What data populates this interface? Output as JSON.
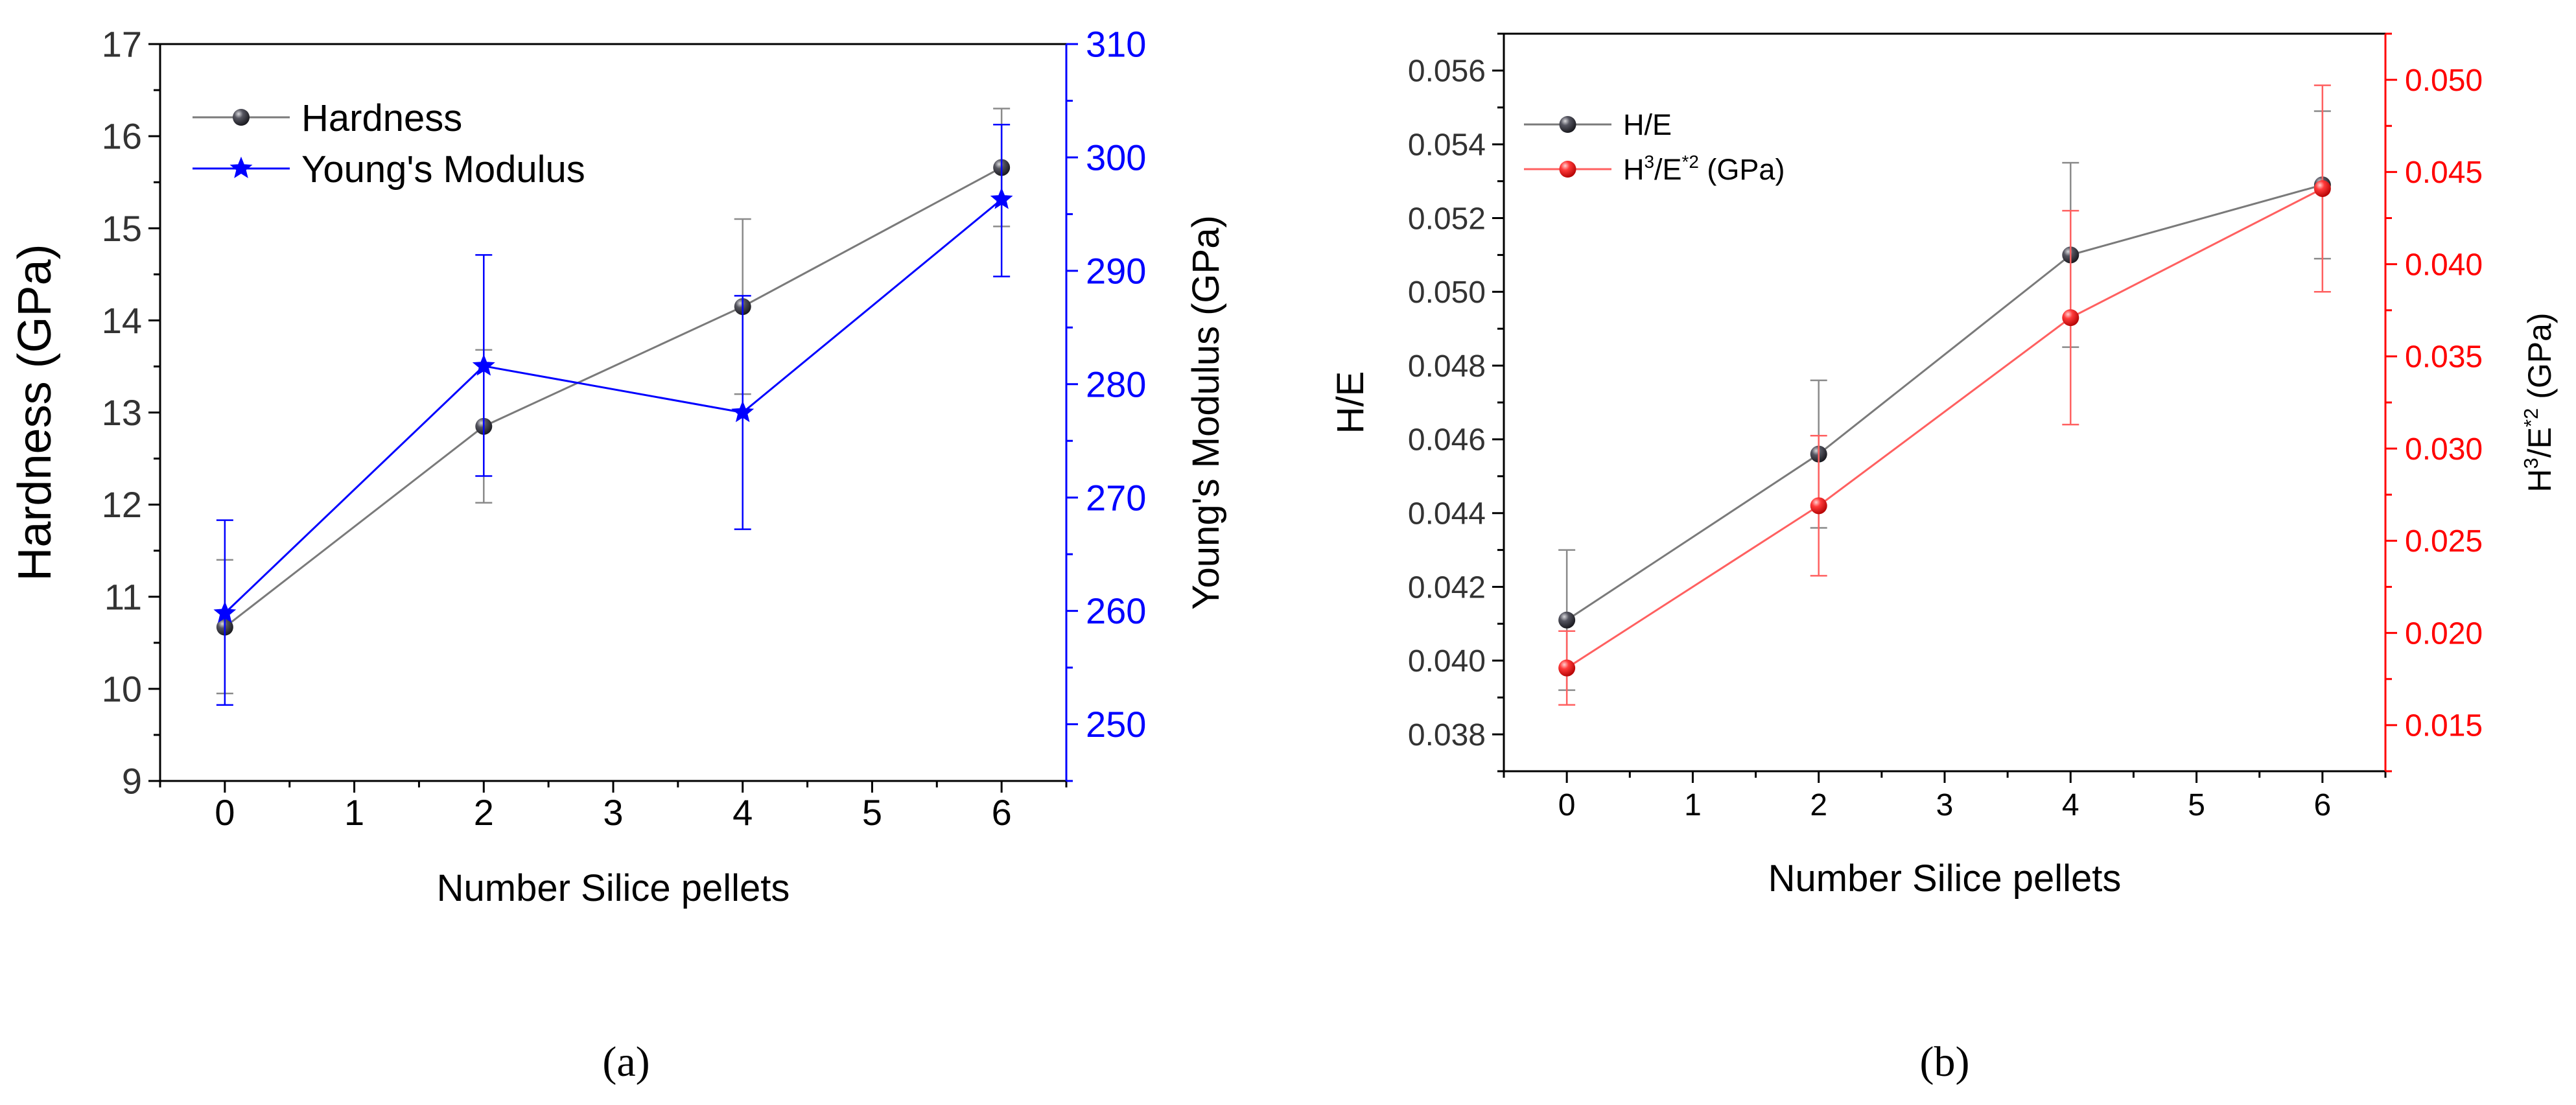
{
  "chart_data": [
    {
      "type": "line",
      "panel_label": "a",
      "xlabel": "Number  Silice pellets",
      "xlim": [
        -0.5,
        6.5
      ],
      "xticks": [
        0,
        1,
        2,
        3,
        4,
        5,
        6
      ],
      "left_axis": {
        "label": "Hardness (GPa)",
        "ylim": [
          9,
          17
        ],
        "ticks": [
          9,
          10,
          11,
          12,
          13,
          14,
          15,
          16,
          17
        ],
        "color": "#000000"
      },
      "right_axis": {
        "label": "Young's Modulus (GPa)",
        "ylim": [
          245,
          310
        ],
        "ticks": [
          250,
          260,
          270,
          280,
          290,
          300,
          310
        ],
        "color": "#0000ff"
      },
      "legend_position": "top-left",
      "series": [
        {
          "name": "Hardness",
          "axis": "left",
          "marker": "sphere",
          "line_color": "#7a7a7a",
          "marker_color": "#2b2b33",
          "x": [
            0,
            2,
            4,
            6
          ],
          "y": [
            10.67,
            12.85,
            14.15,
            15.66
          ],
          "err_low": [
            9.95,
            12.02,
            13.2,
            15.02
          ],
          "err_high": [
            11.4,
            13.68,
            15.1,
            16.3
          ]
        },
        {
          "name": "Young's Modulus",
          "axis": "right",
          "marker": "star",
          "line_color": "#0000ff",
          "marker_color": "#0000ff",
          "x": [
            0,
            2,
            4,
            6
          ],
          "y": [
            259.8,
            281.6,
            277.5,
            296.3
          ],
          "err_low": [
            251.7,
            271.9,
            267.2,
            289.5
          ],
          "err_high": [
            268.0,
            291.4,
            287.8,
            302.9
          ]
        }
      ]
    },
    {
      "type": "line",
      "panel_label": "b",
      "xlabel": "Number  Silice pellets",
      "xlim": [
        -0.5,
        6.5
      ],
      "xticks": [
        0,
        1,
        2,
        3,
        4,
        5,
        6
      ],
      "left_axis": {
        "label": "H/E",
        "ylim": [
          0.037,
          0.057
        ],
        "ticks": [
          0.038,
          0.04,
          0.042,
          0.044,
          0.046,
          0.048,
          0.05,
          0.052,
          0.054,
          0.056
        ],
        "tick_format": "0.000",
        "color": "#000000"
      },
      "right_axis": {
        "label_base": "H",
        "label_sup1": "3",
        "label_mid": "/E",
        "label_sup2": "*2",
        "label_unit": " (GPa)",
        "ylim": [
          0.0125,
          0.0525
        ],
        "ticks": [
          0.015,
          0.02,
          0.025,
          0.03,
          0.035,
          0.04,
          0.045,
          0.05
        ],
        "tick_format": "0.000",
        "color": "#ff0000"
      },
      "legend_position": "top-left",
      "series": [
        {
          "name": "H/E",
          "axis": "left",
          "marker": "sphere",
          "line_color": "#7a7a7a",
          "marker_color": "#2b2b33",
          "x": [
            0,
            2,
            4,
            6
          ],
          "y": [
            0.0411,
            0.0456,
            0.051,
            0.0529
          ],
          "err_low": [
            0.0392,
            0.0436,
            0.0485,
            0.0509
          ],
          "err_high": [
            0.043,
            0.0476,
            0.0535,
            0.0549
          ]
        },
        {
          "name": "H3/E*2 (GPa)",
          "legend_base": "H",
          "legend_sup1": "3",
          "legend_mid": "/E",
          "legend_sup2": "*2",
          "legend_unit": " (GPa)",
          "axis": "right",
          "marker": "sphere",
          "line_color": "#ff6060",
          "marker_color": "#ff2020",
          "x": [
            0,
            2,
            4,
            6
          ],
          "y": [
            0.0181,
            0.0269,
            0.0371,
            0.0441
          ],
          "err_low": [
            0.0161,
            0.0231,
            0.0313,
            0.0385
          ],
          "err_high": [
            0.0201,
            0.0307,
            0.0429,
            0.0497
          ]
        }
      ]
    }
  ],
  "captions": {
    "a": "(a)",
    "b": "(b)"
  }
}
